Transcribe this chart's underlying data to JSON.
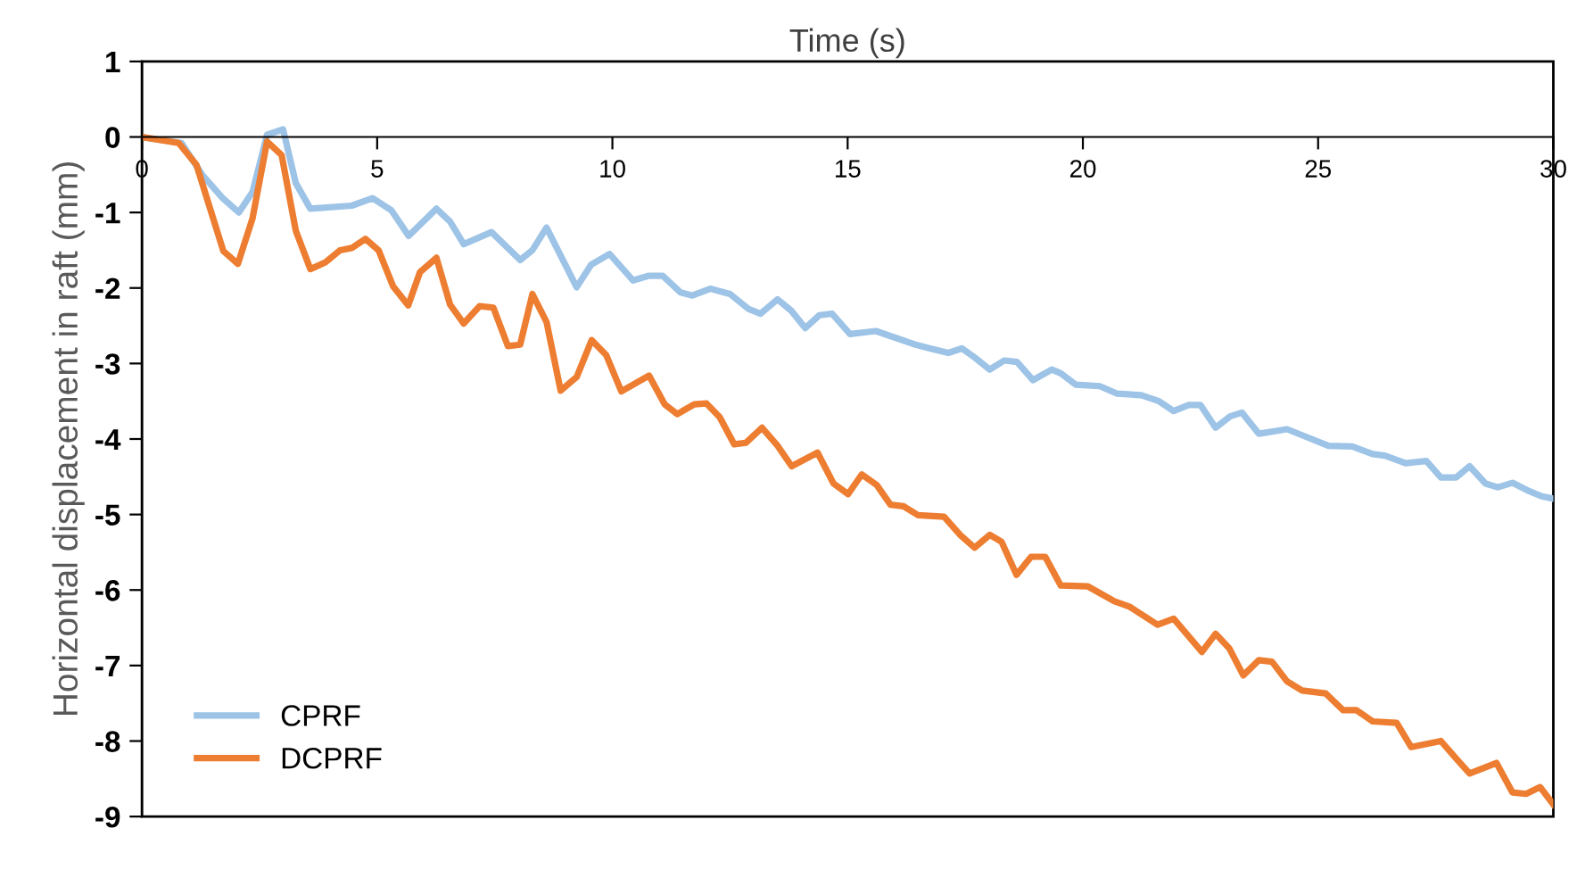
{
  "chart_data": {
    "type": "line",
    "xlabel": "Time (s)",
    "ylabel": "Horizontal displacement in raft (mm)",
    "xlim": [
      0,
      30
    ],
    "xticks": [
      0,
      5,
      10,
      15,
      20,
      25,
      30
    ],
    "ylim": [
      -9,
      1
    ],
    "yticks": [
      1,
      0,
      -1,
      -2,
      -3,
      -4,
      -5,
      -6,
      -7,
      -8,
      -9
    ],
    "grid": false,
    "legend": "bottom left",
    "marker": "none",
    "line_style": "solid",
    "series": [
      {
        "name": "CPRF",
        "color": "#9dc3e6",
        "x": [
          0,
          0.84,
          1.28,
          1.7,
          2.06,
          2.35,
          2.66,
          3.0,
          3.27,
          3.58,
          4.46,
          4.9,
          5.3,
          5.67,
          6.26,
          6.55,
          6.84,
          7.43,
          8.04,
          8.3,
          8.6,
          9.24,
          9.55,
          9.94,
          10.44,
          10.76,
          11.07,
          11.45,
          11.7,
          12.08,
          12.5,
          12.9,
          13.15,
          13.51,
          13.8,
          14.1,
          14.4,
          14.67,
          15.05,
          15.6,
          16.44,
          16.75,
          17.14,
          17.43,
          17.7,
          18.02,
          18.33,
          18.6,
          18.94,
          19.34,
          19.53,
          19.85,
          20.36,
          20.73,
          21.24,
          21.62,
          21.93,
          22.25,
          22.5,
          22.82,
          23.13,
          23.38,
          23.74,
          24.34,
          24.66,
          25.22,
          25.73,
          26.16,
          26.42,
          26.86,
          27.3,
          27.61,
          27.93,
          28.22,
          28.56,
          28.82,
          29.13,
          29.45,
          29.76,
          30
        ],
        "values": [
          0,
          -0.08,
          -0.5,
          -0.8,
          -1.0,
          -0.73,
          0.03,
          0.1,
          -0.61,
          -0.95,
          -0.91,
          -0.81,
          -0.97,
          -1.31,
          -0.95,
          -1.12,
          -1.42,
          -1.26,
          -1.63,
          -1.5,
          -1.2,
          -1.99,
          -1.69,
          -1.55,
          -1.9,
          -1.84,
          -1.84,
          -2.06,
          -2.1,
          -2.01,
          -2.08,
          -2.28,
          -2.34,
          -2.15,
          -2.3,
          -2.53,
          -2.36,
          -2.34,
          -2.61,
          -2.57,
          -2.75,
          -2.8,
          -2.86,
          -2.8,
          -2.92,
          -3.08,
          -2.96,
          -2.98,
          -3.22,
          -3.08,
          -3.13,
          -3.28,
          -3.3,
          -3.4,
          -3.42,
          -3.5,
          -3.63,
          -3.55,
          -3.55,
          -3.85,
          -3.7,
          -3.65,
          -3.93,
          -3.87,
          -3.95,
          -4.09,
          -4.1,
          -4.2,
          -4.22,
          -4.32,
          -4.29,
          -4.51,
          -4.51,
          -4.36,
          -4.59,
          -4.64,
          -4.58,
          -4.68,
          -4.76,
          -4.79
        ]
      },
      {
        "name": "DCPRF",
        "color": "#ed7d31",
        "x": [
          0,
          0.78,
          1.16,
          1.73,
          2.04,
          2.35,
          2.66,
          2.97,
          3.27,
          3.58,
          3.9,
          4.21,
          4.46,
          4.75,
          5.03,
          5.34,
          5.66,
          5.91,
          6.26,
          6.55,
          6.84,
          7.18,
          7.47,
          7.78,
          8.04,
          8.3,
          8.6,
          8.9,
          9.24,
          9.56,
          9.87,
          10.19,
          10.78,
          11.11,
          11.38,
          11.74,
          12.0,
          12.28,
          12.59,
          12.84,
          13.18,
          13.5,
          13.81,
          14.36,
          14.7,
          15.01,
          15.3,
          15.62,
          15.91,
          16.19,
          16.5,
          17.05,
          17.39,
          17.7,
          18.02,
          18.27,
          18.59,
          18.9,
          19.2,
          19.53,
          20.1,
          20.67,
          20.99,
          21.59,
          21.93,
          22.53,
          22.82,
          23.11,
          23.41,
          23.74,
          24.02,
          24.34,
          24.66,
          25.16,
          25.53,
          25.81,
          26.16,
          26.67,
          26.98,
          27.61,
          27.93,
          28.22,
          28.79,
          29.13,
          29.42,
          29.72,
          30
        ],
        "values": [
          0,
          -0.08,
          -0.37,
          -1.51,
          -1.68,
          -1.08,
          -0.06,
          -0.24,
          -1.24,
          -1.75,
          -1.66,
          -1.5,
          -1.47,
          -1.35,
          -1.5,
          -1.98,
          -2.23,
          -1.79,
          -1.6,
          -2.22,
          -2.47,
          -2.24,
          -2.26,
          -2.77,
          -2.75,
          -2.08,
          -2.45,
          -3.36,
          -3.18,
          -2.69,
          -2.89,
          -3.37,
          -3.16,
          -3.54,
          -3.67,
          -3.54,
          -3.53,
          -3.71,
          -4.07,
          -4.05,
          -3.85,
          -4.08,
          -4.36,
          -4.18,
          -4.59,
          -4.73,
          -4.47,
          -4.61,
          -4.87,
          -4.89,
          -5.01,
          -5.03,
          -5.27,
          -5.44,
          -5.27,
          -5.36,
          -5.8,
          -5.56,
          -5.56,
          -5.94,
          -5.95,
          -6.15,
          -6.22,
          -6.46,
          -6.38,
          -6.82,
          -6.58,
          -6.77,
          -7.13,
          -6.93,
          -6.95,
          -7.21,
          -7.33,
          -7.37,
          -7.59,
          -7.59,
          -7.74,
          -7.76,
          -8.08,
          -8.0,
          -8.23,
          -8.43,
          -8.29,
          -8.68,
          -8.7,
          -8.61,
          -8.84
        ]
      }
    ]
  }
}
